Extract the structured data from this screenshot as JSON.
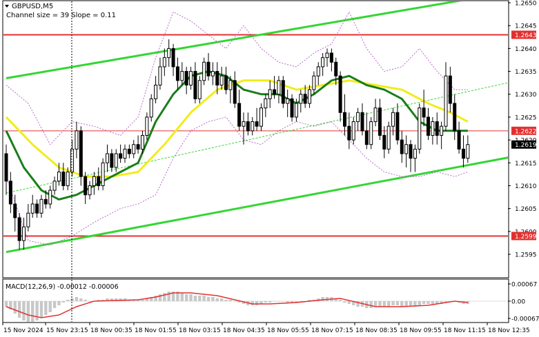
{
  "chart_data": {
    "type": "candlestick",
    "title": "GBPUSD,M5",
    "subtitle": "Channel size = 39  Slope = 0.11",
    "symbol_icon": "triangle-down-icon",
    "colors": {
      "candle": "#000000",
      "ma_fast": "#1a7d1a",
      "ma_slow": "#f2ec1a",
      "channel": "#33d633",
      "bollinger": "#bb66cc",
      "level_line": "#e23030",
      "macd_hist": "#c8c8c8",
      "macd_signal": "#e23030",
      "label_bg_red": "#e23030",
      "label_bg_dark": "#000000"
    },
    "y_axis": {
      "min": 1.2592,
      "max": 1.2652,
      "ticks": [
        "1.2650",
        "1.2645",
        "1.2640",
        "1.2635",
        "1.2630",
        "1.2625",
        "1.2620",
        "1.2615",
        "1.2610",
        "1.2605",
        "1.2600",
        "1.2595"
      ]
    },
    "x_axis": {
      "ticks": [
        "15 Nov 2024",
        "15 Nov 23:15",
        "18 Nov 00:35",
        "18 Nov 01:55",
        "18 Nov 03:15",
        "18 Nov 04:35",
        "18 Nov 05:55",
        "18 Nov 07:15",
        "18 Nov 08:35",
        "18 Nov 09:55",
        "18 Nov 11:15",
        "18 Nov 12:35"
      ]
    },
    "levels": [
      {
        "label": "1.2643",
        "value": 1.2643,
        "style": "red"
      },
      {
        "label": "1.2622",
        "value": 1.2622,
        "style": "red"
      },
      {
        "label": "1.2619",
        "value": 1.2619,
        "style": "dark"
      },
      {
        "label": "1.2599",
        "value": 1.2599,
        "style": "red"
      }
    ],
    "channel": {
      "upper": [
        [
          0,
          1.26335
        ],
        [
          115,
          1.26524
        ]
      ],
      "middle": [
        [
          0,
          1.26084
        ],
        [
          115,
          1.26327
        ]
      ],
      "lower": [
        [
          0,
          1.25955
        ],
        [
          115,
          1.26163
        ]
      ]
    },
    "session_break_index": 19,
    "candles": [
      [
        1.2617,
        1.2619,
        1.2608,
        1.2611
      ],
      [
        1.2611,
        1.2613,
        1.2604,
        1.2606
      ],
      [
        1.2606,
        1.2608,
        1.26,
        1.2603
      ],
      [
        1.2603,
        1.2604,
        1.2596,
        1.2598
      ],
      [
        1.2598,
        1.2603,
        1.2596,
        1.2601
      ],
      [
        1.2601,
        1.2606,
        1.26,
        1.2604
      ],
      [
        1.2604,
        1.2608,
        1.2603,
        1.2606
      ],
      [
        1.2606,
        1.2607,
        1.2603,
        1.2604
      ],
      [
        1.2604,
        1.2608,
        1.2603,
        1.2607
      ],
      [
        1.2607,
        1.2609,
        1.2605,
        1.2606
      ],
      [
        1.2606,
        1.261,
        1.2605,
        1.2609
      ],
      [
        1.2609,
        1.2612,
        1.2608,
        1.2611
      ],
      [
        1.2611,
        1.2615,
        1.261,
        1.2613
      ],
      [
        1.2613,
        1.2615,
        1.2609,
        1.261
      ],
      [
        1.261,
        1.2614,
        1.2609,
        1.2613
      ],
      [
        1.2613,
        1.262,
        1.2612,
        1.2618
      ],
      [
        1.2618,
        1.2624,
        1.2616,
        1.2622
      ],
      [
        1.2622,
        1.2623,
        1.261,
        1.2612
      ],
      [
        1.2612,
        1.2613,
        1.2606,
        1.2608
      ],
      [
        1.2608,
        1.2611,
        1.2607,
        1.261
      ],
      [
        1.261,
        1.2613,
        1.2608,
        1.2612
      ],
      [
        1.2612,
        1.2614,
        1.2609,
        1.261
      ],
      [
        1.261,
        1.2616,
        1.2609,
        1.2615
      ],
      [
        1.2615,
        1.2619,
        1.2613,
        1.2617
      ],
      [
        1.2617,
        1.2618,
        1.2613,
        1.2614
      ],
      [
        1.2614,
        1.2618,
        1.2613,
        1.2617
      ],
      [
        1.2617,
        1.2619,
        1.2615,
        1.2616
      ],
      [
        1.2616,
        1.2619,
        1.2615,
        1.2618
      ],
      [
        1.2618,
        1.2619,
        1.2616,
        1.2617
      ],
      [
        1.2617,
        1.262,
        1.2616,
        1.2619
      ],
      [
        1.2619,
        1.2621,
        1.2617,
        1.2618
      ],
      [
        1.2618,
        1.2622,
        1.2617,
        1.2621
      ],
      [
        1.2621,
        1.2626,
        1.262,
        1.2625
      ],
      [
        1.2625,
        1.263,
        1.2624,
        1.2629
      ],
      [
        1.2629,
        1.2634,
        1.2628,
        1.2632
      ],
      [
        1.2632,
        1.2638,
        1.2631,
        1.2636
      ],
      [
        1.2636,
        1.264,
        1.2634,
        1.2638
      ],
      [
        1.2638,
        1.2642,
        1.2636,
        1.264
      ],
      [
        1.264,
        1.2641,
        1.2634,
        1.2636
      ],
      [
        1.2636,
        1.2638,
        1.2631,
        1.2633
      ],
      [
        1.2633,
        1.2637,
        1.2632,
        1.2635
      ],
      [
        1.2635,
        1.2636,
        1.263,
        1.2632
      ],
      [
        1.2632,
        1.2636,
        1.2631,
        1.2635
      ],
      [
        1.2635,
        1.2637,
        1.2628,
        1.2629
      ],
      [
        1.2629,
        1.2634,
        1.2628,
        1.2633
      ],
      [
        1.2633,
        1.2638,
        1.2632,
        1.2637
      ],
      [
        1.2637,
        1.2639,
        1.2633,
        1.2634
      ],
      [
        1.2634,
        1.2637,
        1.2632,
        1.2635
      ],
      [
        1.2635,
        1.2637,
        1.263,
        1.2632
      ],
      [
        1.2632,
        1.2636,
        1.2631,
        1.2634
      ],
      [
        1.2634,
        1.2636,
        1.263,
        1.2631
      ],
      [
        1.2631,
        1.2634,
        1.2628,
        1.2633
      ],
      [
        1.2633,
        1.2635,
        1.2627,
        1.2628
      ],
      [
        1.2628,
        1.2631,
        1.2622,
        1.2623
      ],
      [
        1.2623,
        1.2626,
        1.2619,
        1.2624
      ],
      [
        1.2624,
        1.2626,
        1.2621,
        1.2622
      ],
      [
        1.2622,
        1.2625,
        1.2621,
        1.2624
      ],
      [
        1.2624,
        1.2627,
        1.2622,
        1.2623
      ],
      [
        1.2623,
        1.2628,
        1.2622,
        1.2627
      ],
      [
        1.2627,
        1.263,
        1.2625,
        1.2629
      ],
      [
        1.2629,
        1.2633,
        1.2627,
        1.2631
      ],
      [
        1.2631,
        1.2634,
        1.2629,
        1.263
      ],
      [
        1.263,
        1.2634,
        1.2628,
        1.2633
      ],
      [
        1.2633,
        1.2634,
        1.2627,
        1.2628
      ],
      [
        1.2628,
        1.2631,
        1.2625,
        1.2629
      ],
      [
        1.2629,
        1.263,
        1.2624,
        1.2625
      ],
      [
        1.2625,
        1.2629,
        1.2624,
        1.2628
      ],
      [
        1.2628,
        1.2631,
        1.2626,
        1.263
      ],
      [
        1.263,
        1.2632,
        1.2627,
        1.2628
      ],
      [
        1.2628,
        1.2632,
        1.2627,
        1.2631
      ],
      [
        1.2631,
        1.2635,
        1.263,
        1.2634
      ],
      [
        1.2634,
        1.2637,
        1.2632,
        1.2636
      ],
      [
        1.2636,
        1.2639,
        1.2634,
        1.2638
      ],
      [
        1.2638,
        1.264,
        1.2636,
        1.2639
      ],
      [
        1.2639,
        1.264,
        1.2635,
        1.2637
      ],
      [
        1.2637,
        1.2638,
        1.2632,
        1.2634
      ],
      [
        1.2634,
        1.2635,
        1.2624,
        1.2626
      ],
      [
        1.2626,
        1.263,
        1.2621,
        1.2623
      ],
      [
        1.2623,
        1.2626,
        1.2618,
        1.262
      ],
      [
        1.262,
        1.2625,
        1.2619,
        1.2624
      ],
      [
        1.2624,
        1.2627,
        1.2622,
        1.2626
      ],
      [
        1.2626,
        1.2628,
        1.2621,
        1.2622
      ],
      [
        1.2622,
        1.2626,
        1.2618,
        1.2619
      ],
      [
        1.2619,
        1.2625,
        1.2618,
        1.2624
      ],
      [
        1.2624,
        1.2629,
        1.2623,
        1.2627
      ],
      [
        1.2627,
        1.2629,
        1.262,
        1.2621
      ],
      [
        1.2621,
        1.2623,
        1.2616,
        1.2618
      ],
      [
        1.2618,
        1.2624,
        1.2617,
        1.2623
      ],
      [
        1.2623,
        1.2627,
        1.2621,
        1.2626
      ],
      [
        1.2626,
        1.2628,
        1.2619,
        1.262
      ],
      [
        1.262,
        1.2622,
        1.2615,
        1.2617
      ],
      [
        1.2617,
        1.2621,
        1.2614,
        1.2619
      ],
      [
        1.2619,
        1.262,
        1.2613,
        1.2616
      ],
      [
        1.2616,
        1.2619,
        1.2613,
        1.2618
      ],
      [
        1.2618,
        1.2628,
        1.2617,
        1.2627
      ],
      [
        1.2627,
        1.2631,
        1.2623,
        1.2625
      ],
      [
        1.2625,
        1.2627,
        1.262,
        1.2621
      ],
      [
        1.2621,
        1.2625,
        1.2619,
        1.2624
      ],
      [
        1.2624,
        1.2626,
        1.2619,
        1.2621
      ],
      [
        1.2621,
        1.2624,
        1.2618,
        1.2623
      ],
      [
        1.2623,
        1.2637,
        1.2622,
        1.2634
      ],
      [
        1.2634,
        1.2636,
        1.2626,
        1.2628
      ],
      [
        1.2628,
        1.263,
        1.262,
        1.2622
      ],
      [
        1.2622,
        1.2624,
        1.2617,
        1.2618
      ],
      [
        1.2618,
        1.2621,
        1.2614,
        1.2616
      ],
      [
        1.2616,
        1.2621,
        1.2615,
        1.2619
      ]
    ],
    "ma_fast": [
      [
        0,
        1.2622
      ],
      [
        4,
        1.2614
      ],
      [
        8,
        1.2609
      ],
      [
        12,
        1.2607
      ],
      [
        16,
        1.2608
      ],
      [
        20,
        1.261
      ],
      [
        26,
        1.2613
      ],
      [
        30,
        1.2615
      ],
      [
        34,
        1.2624
      ],
      [
        38,
        1.263
      ],
      [
        42,
        1.2634
      ],
      [
        46,
        1.2635
      ],
      [
        50,
        1.2634
      ],
      [
        54,
        1.2631
      ],
      [
        58,
        1.263
      ],
      [
        62,
        1.263
      ],
      [
        66,
        1.2628
      ],
      [
        70,
        1.263
      ],
      [
        74,
        1.2633
      ],
      [
        78,
        1.2634
      ],
      [
        82,
        1.2632
      ],
      [
        86,
        1.2631
      ],
      [
        90,
        1.2629
      ],
      [
        94,
        1.2624
      ],
      [
        98,
        1.2622
      ],
      [
        102,
        1.2622
      ],
      [
        105,
        1.2622
      ]
    ],
    "ma_slow": [
      [
        0,
        1.2625
      ],
      [
        6,
        1.2619
      ],
      [
        12,
        1.2614
      ],
      [
        18,
        1.2612
      ],
      [
        24,
        1.2612
      ],
      [
        30,
        1.2613
      ],
      [
        36,
        1.2619
      ],
      [
        42,
        1.2626
      ],
      [
        48,
        1.2631
      ],
      [
        54,
        1.2633
      ],
      [
        60,
        1.2633
      ],
      [
        66,
        1.2631
      ],
      [
        72,
        1.2632
      ],
      [
        78,
        1.2633
      ],
      [
        84,
        1.2632
      ],
      [
        90,
        1.2631
      ],
      [
        96,
        1.2628
      ],
      [
        101,
        1.2626
      ],
      [
        105,
        1.2624
      ]
    ],
    "bb_upper": [
      [
        0,
        1.2632
      ],
      [
        5,
        1.2628
      ],
      [
        10,
        1.2619
      ],
      [
        15,
        1.2624
      ],
      [
        20,
        1.2623
      ],
      [
        26,
        1.2621
      ],
      [
        30,
        1.2625
      ],
      [
        34,
        1.2638
      ],
      [
        38,
        1.2648
      ],
      [
        42,
        1.2646
      ],
      [
        46,
        1.2643
      ],
      [
        50,
        1.264
      ],
      [
        54,
        1.2645
      ],
      [
        58,
        1.264
      ],
      [
        62,
        1.2637
      ],
      [
        66,
        1.2636
      ],
      [
        70,
        1.2639
      ],
      [
        74,
        1.2641
      ],
      [
        78,
        1.2648
      ],
      [
        82,
        1.264
      ],
      [
        86,
        1.2635
      ],
      [
        90,
        1.2636
      ],
      [
        94,
        1.264
      ],
      [
        98,
        1.2635
      ],
      [
        102,
        1.2631
      ],
      [
        105,
        1.2631
      ]
    ],
    "bb_lower": [
      [
        0,
        1.2612
      ],
      [
        5,
        1.2598
      ],
      [
        10,
        1.2597
      ],
      [
        15,
        1.2599
      ],
      [
        20,
        1.2602
      ],
      [
        26,
        1.2605
      ],
      [
        30,
        1.2606
      ],
      [
        34,
        1.2608
      ],
      [
        38,
        1.2616
      ],
      [
        42,
        1.2622
      ],
      [
        46,
        1.2624
      ],
      [
        50,
        1.2625
      ],
      [
        54,
        1.262
      ],
      [
        58,
        1.2619
      ],
      [
        62,
        1.2622
      ],
      [
        66,
        1.2624
      ],
      [
        70,
        1.2623
      ],
      [
        74,
        1.2624
      ],
      [
        78,
        1.262
      ],
      [
        82,
        1.2616
      ],
      [
        86,
        1.2613
      ],
      [
        90,
        1.2612
      ],
      [
        94,
        1.2612
      ],
      [
        98,
        1.2613
      ],
      [
        102,
        1.2612
      ],
      [
        105,
        1.2613
      ]
    ],
    "macd": {
      "label": "MACD(12,26,9) -0.00012 -0.00006",
      "min": -0.00018,
      "max": 9e-05,
      "ticks": [
        "0.00067",
        "0.00",
        "-0.00067"
      ],
      "hist": [
        -4e-05,
        -6e-05,
        -9e-05,
        -0.00012,
        -0.00014,
        -0.00015,
        -0.00015,
        -0.00014,
        -0.00012,
        -0.0001,
        -8e-05,
        -5e-05,
        -3e-05,
        -1e-05,
        1e-05,
        2e-05,
        3e-05,
        2e-05,
        1e-05,
        0.0,
        0.0,
        1e-05,
        1e-05,
        2e-05,
        2e-05,
        2e-05,
        2e-05,
        2e-05,
        1e-05,
        1e-05,
        1e-05,
        1e-05,
        2e-05,
        3e-05,
        4e-05,
        5e-05,
        6e-05,
        7e-05,
        7e-05,
        7e-05,
        6e-05,
        5e-05,
        5e-05,
        4e-05,
        4e-05,
        4e-05,
        3e-05,
        3e-05,
        2e-05,
        2e-05,
        1e-05,
        1e-05,
        0.0,
        -1e-05,
        -2e-05,
        -3e-05,
        -3e-05,
        -3e-05,
        -2e-05,
        -1e-05,
        -1e-05,
        0.0,
        0.0,
        0.0,
        -1e-05,
        -1e-05,
        -1e-05,
        0.0,
        0.0,
        1e-05,
        1e-05,
        2e-05,
        3e-05,
        3e-05,
        3e-05,
        2e-05,
        1e-05,
        -1e-05,
        -2e-05,
        -3e-05,
        -4e-05,
        -4e-05,
        -5e-05,
        -5e-05,
        -4e-05,
        -4e-05,
        -4e-05,
        -4e-05,
        -3e-05,
        -3e-05,
        -4e-05,
        -4e-05,
        -4e-05,
        -4e-05,
        -3e-05,
        -2e-05,
        -2e-05,
        -2e-05,
        -2e-05,
        -2e-05,
        -1e-05,
        0.0,
        0.0,
        -1e-05,
        -2e-05,
        -2e-05
      ],
      "signal": [
        [
          0,
          -4e-05
        ],
        [
          5,
          -0.0001
        ],
        [
          8,
          -0.00012
        ],
        [
          12,
          -0.0001
        ],
        [
          16,
          -4e-05
        ],
        [
          20,
          0.0
        ],
        [
          30,
          1e-05
        ],
        [
          34,
          3e-05
        ],
        [
          38,
          6e-05
        ],
        [
          42,
          6e-05
        ],
        [
          48,
          4e-05
        ],
        [
          52,
          1e-05
        ],
        [
          56,
          -2e-05
        ],
        [
          60,
          -2e-05
        ],
        [
          66,
          -1e-05
        ],
        [
          72,
          1e-05
        ],
        [
          76,
          2e-05
        ],
        [
          80,
          -1e-05
        ],
        [
          84,
          -4e-05
        ],
        [
          90,
          -4e-05
        ],
        [
          96,
          -3e-05
        ],
        [
          100,
          -1e-05
        ],
        [
          102,
          0.0
        ],
        [
          105,
          -1e-05
        ]
      ]
    }
  }
}
